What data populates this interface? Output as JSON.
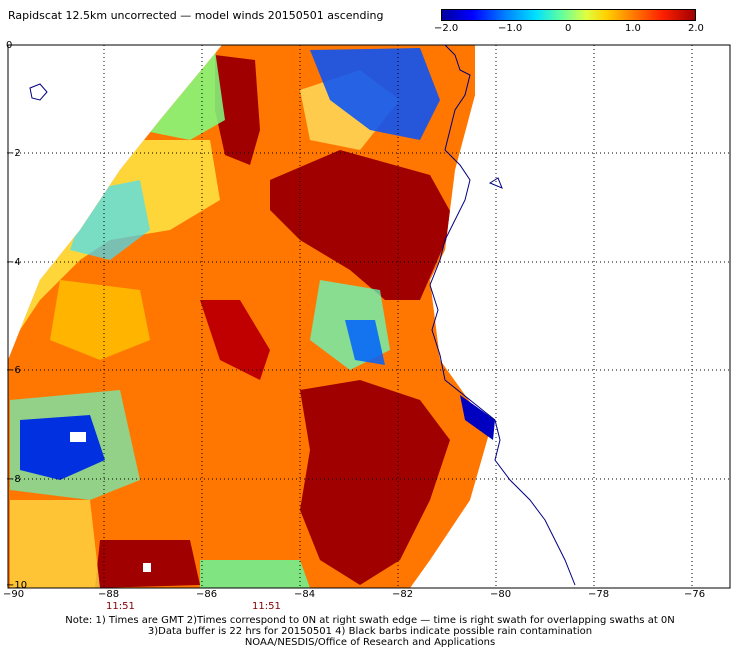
{
  "title": "Rapidscat 12.5km uncorrected — model winds 20150501 ascending",
  "colorbar": {
    "ticks": [
      "−2.0",
      "−1.0",
      "0",
      "1.0",
      "2.0"
    ],
    "range": [
      -2.0,
      2.0
    ]
  },
  "axes": {
    "x_ticks": [
      "−90",
      "−88",
      "−86",
      "−84",
      "−82",
      "−80",
      "−78",
      "−76"
    ],
    "y_ticks": [
      "0",
      "−2",
      "−4",
      "−6",
      "−8",
      "−10"
    ],
    "x_range": [
      -90,
      -76
    ],
    "y_range": [
      -10,
      0
    ]
  },
  "time_labels": [
    "11:51",
    "11:51"
  ],
  "notes": {
    "line1": "Note: 1) Times are GMT 2)Times correspond to 0N at right swath edge — time is right swath for overlapping swaths at 0N",
    "line2": "3)Data buffer is 22 hrs for 20150501 4) Black barbs indicate possible rain contamination",
    "line3": "NOAA/NESDIS/Office of Research and Applications"
  }
}
